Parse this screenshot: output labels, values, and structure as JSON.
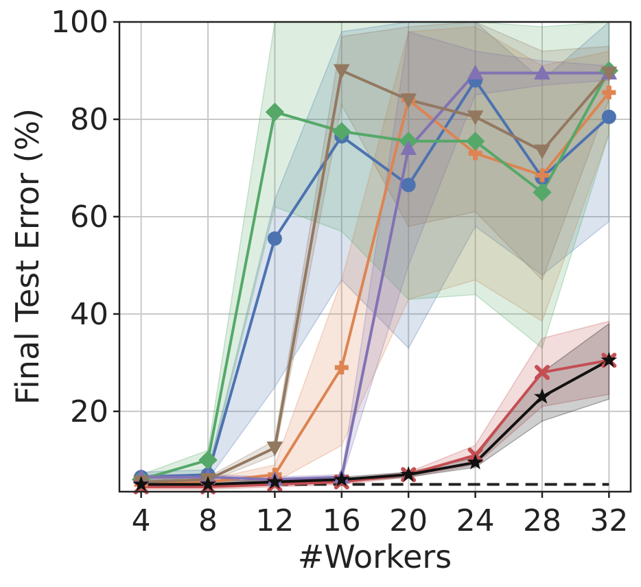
{
  "chart_data": {
    "type": "line",
    "title": "",
    "xlabel": "#Workers",
    "ylabel": "Final Test Error (%)",
    "x": [
      4,
      8,
      12,
      16,
      20,
      24,
      28,
      32
    ],
    "x_tick_labels": [
      "4",
      "8",
      "12",
      "16",
      "20",
      "24",
      "28",
      "32"
    ],
    "y_tick_labels": [
      "20",
      "40",
      "60",
      "80",
      "100"
    ],
    "y_ticks": [
      20,
      40,
      60,
      80,
      100
    ],
    "xlim": [
      2.7,
      33.3
    ],
    "ylim": [
      3.5,
      100
    ],
    "grid": true,
    "legend": "none",
    "baseline": {
      "value": 5.0,
      "style": "dashed",
      "color": "#222222"
    },
    "series": [
      {
        "color": "#4c72b0",
        "marker": "circle",
        "values": [
          6.5,
          7.0,
          55.5,
          76.5,
          66.5,
          88.0,
          68.0,
          80.5
        ],
        "band_low": [
          5.5,
          6.0,
          25.0,
          47.0,
          33.0,
          58.0,
          48.0,
          59.0
        ],
        "band_high": [
          7.5,
          8.0,
          63.5,
          98.0,
          100.0,
          100.0,
          88.0,
          100.0
        ]
      },
      {
        "color": "#dd8452",
        "marker": "plus",
        "values": [
          5.0,
          5.5,
          7.0,
          29.0,
          84.0,
          73.0,
          68.5,
          85.5
        ],
        "band_low": [
          4.5,
          5.0,
          5.5,
          13.0,
          43.0,
          47.0,
          38.5,
          77.0
        ],
        "band_high": [
          5.5,
          6.0,
          9.0,
          47.0,
          98.0,
          99.0,
          91.0,
          94.0
        ]
      },
      {
        "color": "#55a868",
        "marker": "diamond",
        "values": [
          6.0,
          10.0,
          81.5,
          77.5,
          75.5,
          75.5,
          65.0,
          90.0
        ],
        "band_low": [
          5.0,
          7.0,
          62.0,
          57.0,
          43.0,
          44.0,
          33.0,
          77.0
        ],
        "band_high": [
          7.0,
          12.0,
          100.0,
          100.0,
          100.0,
          100.0,
          99.0,
          100.0
        ]
      },
      {
        "color": "#c44e52",
        "marker": "x",
        "values": [
          4.5,
          4.5,
          5.0,
          5.5,
          7.0,
          11.0,
          28.0,
          30.5
        ],
        "band_low": [
          4.0,
          4.0,
          4.5,
          5.0,
          6.5,
          9.0,
          21.0,
          23.5
        ],
        "band_high": [
          5.0,
          5.0,
          5.5,
          6.0,
          7.5,
          13.0,
          35.0,
          38.5
        ]
      },
      {
        "color": "#8172b3",
        "marker": "triangle-up",
        "values": [
          6.5,
          6.5,
          6.0,
          6.5,
          74.0,
          89.5,
          89.5,
          89.5
        ],
        "band_low": [
          6.0,
          6.0,
          5.5,
          6.0,
          50.0,
          85.0,
          87.0,
          88.0
        ],
        "band_high": [
          7.0,
          7.0,
          6.5,
          7.0,
          98.0,
          94.0,
          92.0,
          91.0
        ]
      },
      {
        "color": "#937860",
        "marker": "triangle-down",
        "values": [
          5.5,
          6.0,
          12.5,
          90.0,
          84.0,
          80.5,
          73.5,
          89.5
        ],
        "band_low": [
          5.0,
          5.5,
          11.0,
          83.0,
          58.0,
          61.0,
          47.0,
          84.0
        ],
        "band_high": [
          6.0,
          6.5,
          14.0,
          97.0,
          99.0,
          100.0,
          94.0,
          95.0
        ]
      },
      {
        "color": "#111111",
        "marker": "star",
        "values": [
          5.0,
          5.0,
          5.5,
          6.0,
          7.0,
          9.5,
          23.0,
          30.5
        ],
        "band_low": [
          4.5,
          4.5,
          5.0,
          5.5,
          6.5,
          8.5,
          18.0,
          22.5
        ],
        "band_high": [
          5.5,
          5.5,
          6.0,
          6.5,
          7.5,
          10.5,
          28.0,
          38.0
        ]
      }
    ]
  }
}
